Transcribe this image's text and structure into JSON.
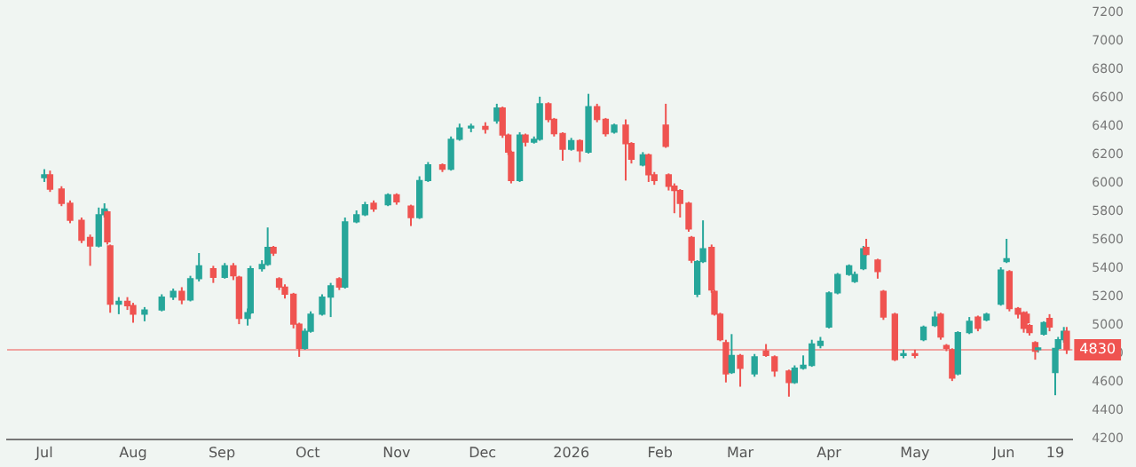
{
  "chart_data": {
    "type": "candlestick",
    "colors": [
      "#26a69a",
      "#ef5350",
      "#ef5350",
      "#ef5350",
      "#ef5350",
      "#ef5350",
      "#26a69a",
      "#26a69a",
      "#ef5350",
      "#ef5350",
      "#26a69a",
      "#ef5350",
      "#ef5350",
      "#26a69a",
      "#26a69a",
      "#26a69a",
      "#ef5350",
      "#26a69a",
      "#26a69a",
      "#ef5350",
      "#26a69a",
      "#ef5350",
      "#ef5350",
      "#26a69a",
      "#26a69a",
      "#26a69a",
      "#26a69a",
      "#ef5350",
      "#ef5350",
      "#ef5350",
      "#ef5350",
      "#ef5350",
      "#26a69a",
      "#26a69a",
      "#26a69a",
      "#26a69a",
      "#ef5350",
      "#26a69a",
      "#26a69a",
      "#26a69a",
      "#ef5350",
      "#26a69a",
      "#ef5350",
      "#ef5350",
      "#26a69a",
      "#26a69a",
      "#ef5350",
      "#26a69a",
      "#26a69a",
      "#26a69a",
      "#ef5350",
      "#26a69a",
      "#ef5350",
      "#ef5350",
      "#ef5350",
      "#26a69a",
      "#ef5350",
      "#26a69a",
      "#26a69a",
      "#ef5350",
      "#ef5350",
      "#ef5350",
      "#26a69a",
      "#ef5350",
      "#26a69a",
      "#ef5350",
      "#ef5350",
      "#26a69a",
      "#ef5350",
      "#ef5350",
      "#26a69a",
      "#ef5350",
      "#ef5350",
      "#ef5350",
      "#ef5350",
      "#ef5350",
      "#ef5350",
      "#ef5350",
      "#ef5350",
      "#26a69a",
      "#26a69a",
      "#ef5350",
      "#ef5350",
      "#ef5350",
      "#ef5350",
      "#26a69a",
      "#ef5350",
      "#26a69a",
      "#ef5350",
      "#ef5350",
      "#ef5350",
      "#26a69a",
      "#26a69a",
      "#26a69a",
      "#26a69a",
      "#26a69a",
      "#26a69a",
      "#26a69a",
      "#26a69a",
      "#26a69a",
      "#ef5350",
      "#ef5350",
      "#ef5350",
      "#ef5350",
      "#26a69a",
      "#ef5350",
      "#26a69a",
      "#26a69a",
      "#ef5350",
      "#ef5350",
      "#ef5350",
      "#26a69a",
      "#26a69a",
      "#ef5350",
      "#26a69a",
      "#26a69a",
      "#26a69a",
      "#ef5350",
      "#ef5350",
      "#ef5350",
      "#ef5350",
      "#ef5350",
      "#ef5350",
      "#26a69a",
      "#26a69a",
      "#ef5350",
      "#26a69a",
      "#26a69a",
      "#26a69a",
      "#ef5350"
    ],
    "x": [
      "2025-07-01",
      "2025-07-03",
      "2025-07-07",
      "2025-07-10",
      "2025-07-14",
      "2025-07-17",
      "2025-07-20",
      "2025-07-22",
      "2025-07-23",
      "2025-07-24",
      "2025-07-27",
      "2025-07-30",
      "2025-08-01",
      "2025-08-05",
      "2025-08-11",
      "2025-08-15",
      "2025-08-18",
      "2025-08-21",
      "2025-08-24",
      "2025-08-29",
      "2025-09-02",
      "2025-09-05",
      "2025-09-07",
      "2025-09-10",
      "2025-09-11",
      "2025-09-15",
      "2025-09-17",
      "2025-09-19",
      "2025-09-21",
      "2025-09-23",
      "2025-09-26",
      "2025-09-28",
      "2025-09-30",
      "2025-10-02",
      "2025-10-06",
      "2025-10-09",
      "2025-10-12",
      "2025-10-14",
      "2025-10-18",
      "2025-10-21",
      "2025-10-24",
      "2025-10-29",
      "2025-11-01",
      "2025-11-06",
      "2025-11-09",
      "2025-11-12",
      "2025-11-17",
      "2025-11-20",
      "2025-11-23",
      "2025-11-27",
      "2025-12-02",
      "2025-12-06",
      "2025-12-08",
      "2025-12-10",
      "2025-12-11",
      "2025-12-14",
      "2025-12-16",
      "2025-12-19",
      "2025-12-21",
      "2025-12-24",
      "2025-12-26",
      "2025-12-29",
      "2026-01-01",
      "2026-01-04",
      "2026-01-07",
      "2026-01-10",
      "2026-01-13",
      "2026-01-16",
      "2026-01-20",
      "2026-01-22",
      "2026-01-26",
      "2026-01-28",
      "2026-01-30",
      "2026-02-03",
      "2026-02-04",
      "2026-02-06",
      "2026-02-08",
      "2026-02-11",
      "2026-02-12",
      "2026-02-14",
      "2026-02-16",
      "2026-02-19",
      "2026-02-20",
      "2026-02-22",
      "2026-02-24",
      "2026-02-26",
      "2026-03-01",
      "2026-03-06",
      "2026-03-10",
      "2026-03-13",
      "2026-03-18",
      "2026-03-20",
      "2026-03-23",
      "2026-03-26",
      "2026-03-29",
      "2026-04-01",
      "2026-04-04",
      "2026-04-08",
      "2026-04-10",
      "2026-04-13",
      "2026-04-14",
      "2026-04-18",
      "2026-04-20",
      "2026-04-24",
      "2026-04-27",
      "2026-05-01",
      "2026-05-04",
      "2026-05-08",
      "2026-05-10",
      "2026-05-12",
      "2026-05-14",
      "2026-05-16",
      "2026-05-20",
      "2026-05-23",
      "2026-05-26",
      "2026-05-31",
      "2026-06-02",
      "2026-06-03",
      "2026-06-06",
      "2026-06-08",
      "2026-06-09",
      "2026-06-10",
      "2026-06-12",
      "2026-06-13",
      "2026-06-15",
      "2026-06-17",
      "2026-06-19",
      "2026-06-20",
      "2026-06-22",
      "2026-06-23"
    ],
    "ohlc": [
      [
        6040,
        6100,
        6010,
        6060
      ],
      [
        6060,
        6090,
        5940,
        5960
      ],
      [
        5960,
        5980,
        5840,
        5860
      ],
      [
        5860,
        5880,
        5720,
        5740
      ],
      [
        5740,
        5760,
        5580,
        5600
      ],
      [
        5620,
        5640,
        5420,
        5560
      ],
      [
        5560,
        5830,
        5550,
        5780
      ],
      [
        5780,
        5860,
        5760,
        5820
      ],
      [
        5800,
        5810,
        5570,
        5590
      ],
      [
        5560,
        5570,
        5090,
        5150
      ],
      [
        5150,
        5200,
        5080,
        5170
      ],
      [
        5170,
        5200,
        5110,
        5140
      ],
      [
        5140,
        5160,
        5020,
        5080
      ],
      [
        5080,
        5130,
        5030,
        5110
      ],
      [
        5110,
        5220,
        5100,
        5200
      ],
      [
        5200,
        5260,
        5180,
        5240
      ],
      [
        5240,
        5270,
        5150,
        5180
      ],
      [
        5180,
        5350,
        5170,
        5330
      ],
      [
        5330,
        5510,
        5310,
        5420
      ],
      [
        5400,
        5420,
        5300,
        5340
      ],
      [
        5340,
        5440,
        5330,
        5420
      ],
      [
        5420,
        5440,
        5320,
        5350
      ],
      [
        5340,
        5350,
        5010,
        5050
      ],
      [
        5050,
        5120,
        5000,
        5090
      ],
      [
        5090,
        5420,
        5080,
        5400
      ],
      [
        5400,
        5460,
        5380,
        5430
      ],
      [
        5430,
        5690,
        5420,
        5550
      ],
      [
        5550,
        5560,
        5490,
        5510
      ],
      [
        5330,
        5340,
        5250,
        5270
      ],
      [
        5270,
        5290,
        5190,
        5220
      ],
      [
        5220,
        5230,
        4980,
        5010
      ],
      [
        5010,
        5020,
        4780,
        4840
      ],
      [
        4840,
        4980,
        4830,
        4960
      ],
      [
        4960,
        5100,
        4950,
        5080
      ],
      [
        5080,
        5220,
        5070,
        5200
      ],
      [
        5200,
        5300,
        5060,
        5280
      ],
      [
        5330,
        5340,
        5250,
        5270
      ],
      [
        5270,
        5760,
        5260,
        5730
      ],
      [
        5730,
        5810,
        5720,
        5780
      ],
      [
        5780,
        5870,
        5770,
        5850
      ],
      [
        5860,
        5880,
        5800,
        5820
      ],
      [
        5850,
        5930,
        5840,
        5920
      ],
      [
        5920,
        5930,
        5850,
        5870
      ],
      [
        5840,
        5850,
        5700,
        5760
      ],
      [
        5760,
        6050,
        5750,
        6020
      ],
      [
        6020,
        6150,
        6010,
        6130
      ],
      [
        6130,
        6140,
        6080,
        6100
      ],
      [
        6100,
        6330,
        6090,
        6310
      ],
      [
        6310,
        6420,
        6300,
        6390
      ],
      [
        6390,
        6420,
        6360,
        6400
      ],
      [
        6400,
        6430,
        6350,
        6380
      ],
      [
        6440,
        6560,
        6420,
        6530
      ],
      [
        6530,
        6540,
        6320,
        6340
      ],
      [
        6340,
        6350,
        6200,
        6220
      ],
      [
        6220,
        6230,
        6000,
        6020
      ],
      [
        6020,
        6360,
        6010,
        6340
      ],
      [
        6340,
        6350,
        6260,
        6290
      ],
      [
        6290,
        6330,
        6280,
        6310
      ],
      [
        6310,
        6610,
        6300,
        6560
      ],
      [
        6560,
        6570,
        6430,
        6450
      ],
      [
        6450,
        6460,
        6330,
        6350
      ],
      [
        6350,
        6360,
        6160,
        6240
      ],
      [
        6240,
        6320,
        6230,
        6300
      ],
      [
        6300,
        6310,
        6150,
        6230
      ],
      [
        6220,
        6630,
        6210,
        6540
      ],
      [
        6540,
        6560,
        6430,
        6450
      ],
      [
        6450,
        6460,
        6330,
        6350
      ],
      [
        6360,
        6420,
        6350,
        6410
      ],
      [
        6410,
        6450,
        6020,
        6280
      ],
      [
        6280,
        6290,
        6140,
        6170
      ],
      [
        6130,
        6220,
        6120,
        6200
      ],
      [
        6200,
        6210,
        6010,
        6060
      ],
      [
        6060,
        6080,
        5990,
        6020
      ],
      [
        6410,
        6560,
        6250,
        6260
      ],
      [
        6060,
        6070,
        5950,
        5980
      ],
      [
        5980,
        6000,
        5790,
        5950
      ],
      [
        5950,
        5960,
        5760,
        5860
      ],
      [
        5860,
        5870,
        5660,
        5680
      ],
      [
        5620,
        5630,
        5440,
        5460
      ],
      [
        5220,
        5460,
        5200,
        5450
      ],
      [
        5450,
        5740,
        5440,
        5540
      ],
      [
        5550,
        5570,
        5230,
        5250
      ],
      [
        5240,
        5250,
        5070,
        5080
      ],
      [
        5080,
        5090,
        4890,
        4900
      ],
      [
        4880,
        4900,
        4600,
        4660
      ],
      [
        4670,
        4940,
        4660,
        4790
      ],
      [
        4790,
        4800,
        4570,
        4700
      ],
      [
        4660,
        4800,
        4640,
        4780
      ],
      [
        4820,
        4870,
        4780,
        4790
      ],
      [
        4780,
        4790,
        4640,
        4680
      ],
      [
        4680,
        4690,
        4500,
        4600
      ],
      [
        4600,
        4720,
        4590,
        4700
      ],
      [
        4700,
        4790,
        4690,
        4720
      ],
      [
        4720,
        4900,
        4710,
        4870
      ],
      [
        4860,
        4920,
        4840,
        4890
      ],
      [
        4990,
        5240,
        4980,
        5230
      ],
      [
        5230,
        5370,
        5220,
        5360
      ],
      [
        5360,
        5430,
        5350,
        5420
      ],
      [
        5310,
        5380,
        5300,
        5360
      ],
      [
        5400,
        5560,
        5390,
        5540
      ],
      [
        5550,
        5610,
        5490,
        5500
      ],
      [
        5460,
        5470,
        5330,
        5380
      ],
      [
        5240,
        5250,
        5040,
        5060
      ],
      [
        5080,
        5090,
        4750,
        4760
      ],
      [
        4790,
        4830,
        4770,
        4800
      ],
      [
        4800,
        4830,
        4770,
        4790
      ],
      [
        4900,
        5000,
        4890,
        4990
      ],
      [
        5000,
        5100,
        4990,
        5060
      ],
      [
        5080,
        5090,
        4900,
        4920
      ],
      [
        4860,
        4870,
        4820,
        4840
      ],
      [
        4830,
        4840,
        4610,
        4630
      ],
      [
        4660,
        4960,
        4650,
        4950
      ],
      [
        4950,
        5060,
        4940,
        5030
      ],
      [
        5060,
        5070,
        4960,
        4980
      ],
      [
        5040,
        5090,
        5030,
        5080
      ],
      [
        5150,
        5410,
        5140,
        5390
      ],
      [
        5450,
        5610,
        5440,
        5470
      ],
      [
        5380,
        5390,
        5100,
        5120
      ],
      [
        5120,
        5130,
        5050,
        5080
      ],
      [
        5090,
        5100,
        4950,
        4980
      ],
      [
        5080,
        5100,
        5000,
        5020
      ],
      [
        5000,
        5010,
        4930,
        4950
      ],
      [
        4880,
        4890,
        4760,
        4820
      ],
      [
        4830,
        4850,
        4810,
        4840
      ],
      [
        4940,
        5030,
        4930,
        5020
      ],
      [
        5050,
        5080,
        4960,
        4990
      ],
      [
        4670,
        4840,
        4510,
        4840
      ],
      [
        4840,
        4920,
        4830,
        4900
      ],
      [
        4900,
        4990,
        4880,
        4960
      ],
      [
        4960,
        4990,
        4800,
        4830
      ]
    ],
    "xlim": [
      "2025-06-18",
      "2026-06-25"
    ],
    "xticks": [
      {
        "value": "2025-07-01",
        "label": "Jul"
      },
      {
        "value": "2025-08-01",
        "label": "Aug"
      },
      {
        "value": "2025-09-01",
        "label": "Sep"
      },
      {
        "value": "2025-10-01",
        "label": "Oct"
      },
      {
        "value": "2025-11-01",
        "label": "Nov"
      },
      {
        "value": "2025-12-01",
        "label": "Dec"
      },
      {
        "value": "2026-01-01",
        "label": "2026"
      },
      {
        "value": "2026-02-01",
        "label": "Feb"
      },
      {
        "value": "2026-03-01",
        "label": "Mar"
      },
      {
        "value": "2026-04-01",
        "label": "Apr"
      },
      {
        "value": "2026-05-01",
        "label": "May"
      },
      {
        "value": "2026-06-01",
        "label": "Jun"
      },
      {
        "value": "2026-06-19",
        "label": "19"
      }
    ],
    "ylim": [
      4200,
      7200
    ],
    "yticks": [
      4200,
      4400,
      4600,
      4800,
      5000,
      5200,
      5400,
      5600,
      5800,
      6000,
      6200,
      6400,
      6600,
      6800,
      7000,
      7200
    ],
    "ref_lines": [
      {
        "axis": "y",
        "value": 4830,
        "label": "4830",
        "color": "#ef5350"
      }
    ]
  }
}
